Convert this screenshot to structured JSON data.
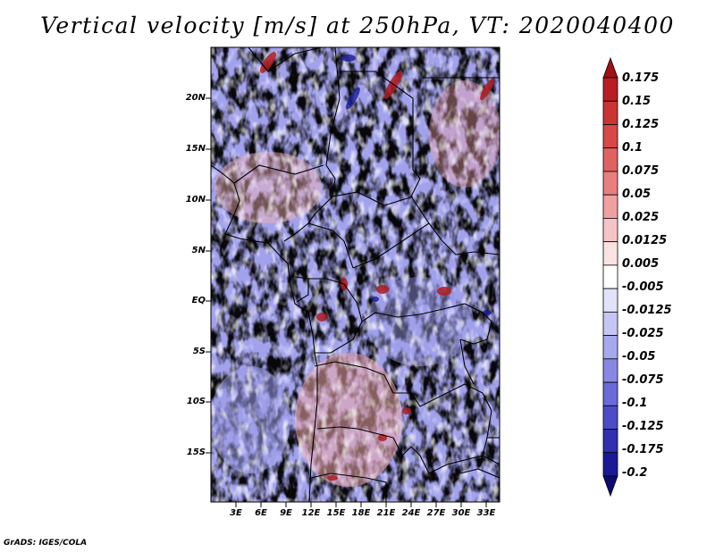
{
  "title": "Vertical velocity [m/s] at 250hPa, VT: 2020040400",
  "credit": "GrADS: IGES/COLA",
  "map": {
    "variable": "Vertical velocity",
    "units": "m/s",
    "level": "250hPa",
    "valid_time": "2020040400",
    "lat_labels": [
      "20N",
      "15N",
      "10N",
      "5N",
      "EQ",
      "5S",
      "10S",
      "15S"
    ],
    "lon_labels": [
      "3E",
      "6E",
      "9E",
      "12E",
      "15E",
      "18E",
      "21E",
      "24E",
      "27E",
      "30E",
      "33E"
    ]
  },
  "colorbar": {
    "labels": [
      "0.175",
      "0.15",
      "0.125",
      "0.1",
      "0.075",
      "0.05",
      "0.025",
      "0.0125",
      "0.005",
      "-0.005",
      "-0.0125",
      "-0.025",
      "-0.05",
      "-0.075",
      "-0.1",
      "-0.125",
      "-0.175",
      "-0.2"
    ],
    "colors": [
      "#a01016",
      "#b81e24",
      "#cc3434",
      "#d84848",
      "#e06262",
      "#e87e7e",
      "#f0a0a0",
      "#f6c4c4",
      "#fbe2e2",
      "#ffffff",
      "#e2e2fa",
      "#c6c6f4",
      "#a8a8ee",
      "#8888e4",
      "#6a6ad8",
      "#4c4cc8",
      "#3030b0",
      "#1a1a96",
      "#0c0c70"
    ]
  }
}
